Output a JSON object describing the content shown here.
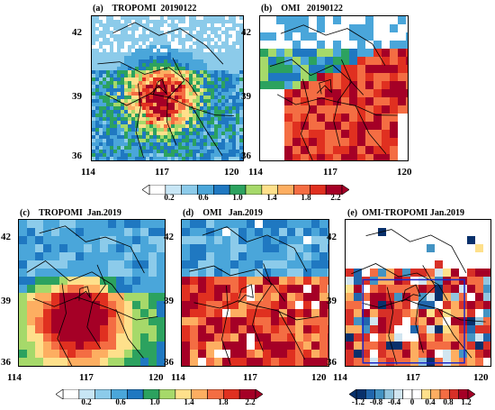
{
  "panels": [
    {
      "id": "a",
      "label": "(a)",
      "title": "TROPOMI  20190122",
      "lat_ticks": [
        "42",
        "39",
        "36"
      ],
      "lon_ticks": [
        "114",
        "117",
        "120"
      ],
      "variant": "tropomi_daily"
    },
    {
      "id": "b",
      "label": "(b)",
      "title": "OMI   20190122",
      "lat_ticks": [
        "42",
        "39",
        "36"
      ],
      "lon_ticks": [
        "114",
        "117",
        "120"
      ],
      "variant": "omi_daily"
    },
    {
      "id": "c",
      "label": "(c)",
      "title": "TROPOMI  Jan.2019",
      "lat_ticks": [
        "42",
        "39",
        "36"
      ],
      "lon_ticks": [
        "114",
        "117",
        "120"
      ],
      "variant": "tropomi_monthly"
    },
    {
      "id": "d",
      "label": "(d)",
      "title": "OMI   Jan.2019",
      "lat_ticks": [
        "42",
        "39",
        "36"
      ],
      "lon_ticks": [
        "114",
        "117",
        "120"
      ],
      "variant": "omi_monthly"
    },
    {
      "id": "e",
      "label": "(e)",
      "title": "OMI-TROPOMI Jan.2019",
      "lat_ticks": [
        "42",
        "39",
        "36"
      ],
      "lon_ticks": [
        "114",
        "117",
        "120"
      ],
      "variant": "diff"
    }
  ],
  "colorbar_main": {
    "labels": [
      "0.2",
      "0.6",
      "1.0",
      "1.4",
      "1.8",
      "2.2"
    ],
    "colors": [
      "#ffffff",
      "#c8e6f5",
      "#8ccbea",
      "#4aa6da",
      "#1f78c1",
      "#2ca25f",
      "#a6d96a",
      "#fee08b",
      "#fdae61",
      "#f46d43",
      "#e03020",
      "#a50026"
    ]
  },
  "colorbar_diff": {
    "labels": [
      "-1.2",
      "-0.8",
      "-0.4",
      "0",
      "0.4",
      "0.8",
      "1.2"
    ],
    "colors": [
      "#08306b",
      "#2166ac",
      "#4393c3",
      "#92c5de",
      "#d1e5f0",
      "#ffffff",
      "#ffffff",
      "#fee08b",
      "#fdae61",
      "#f46d43",
      "#d73027",
      "#a50026"
    ]
  }
}
